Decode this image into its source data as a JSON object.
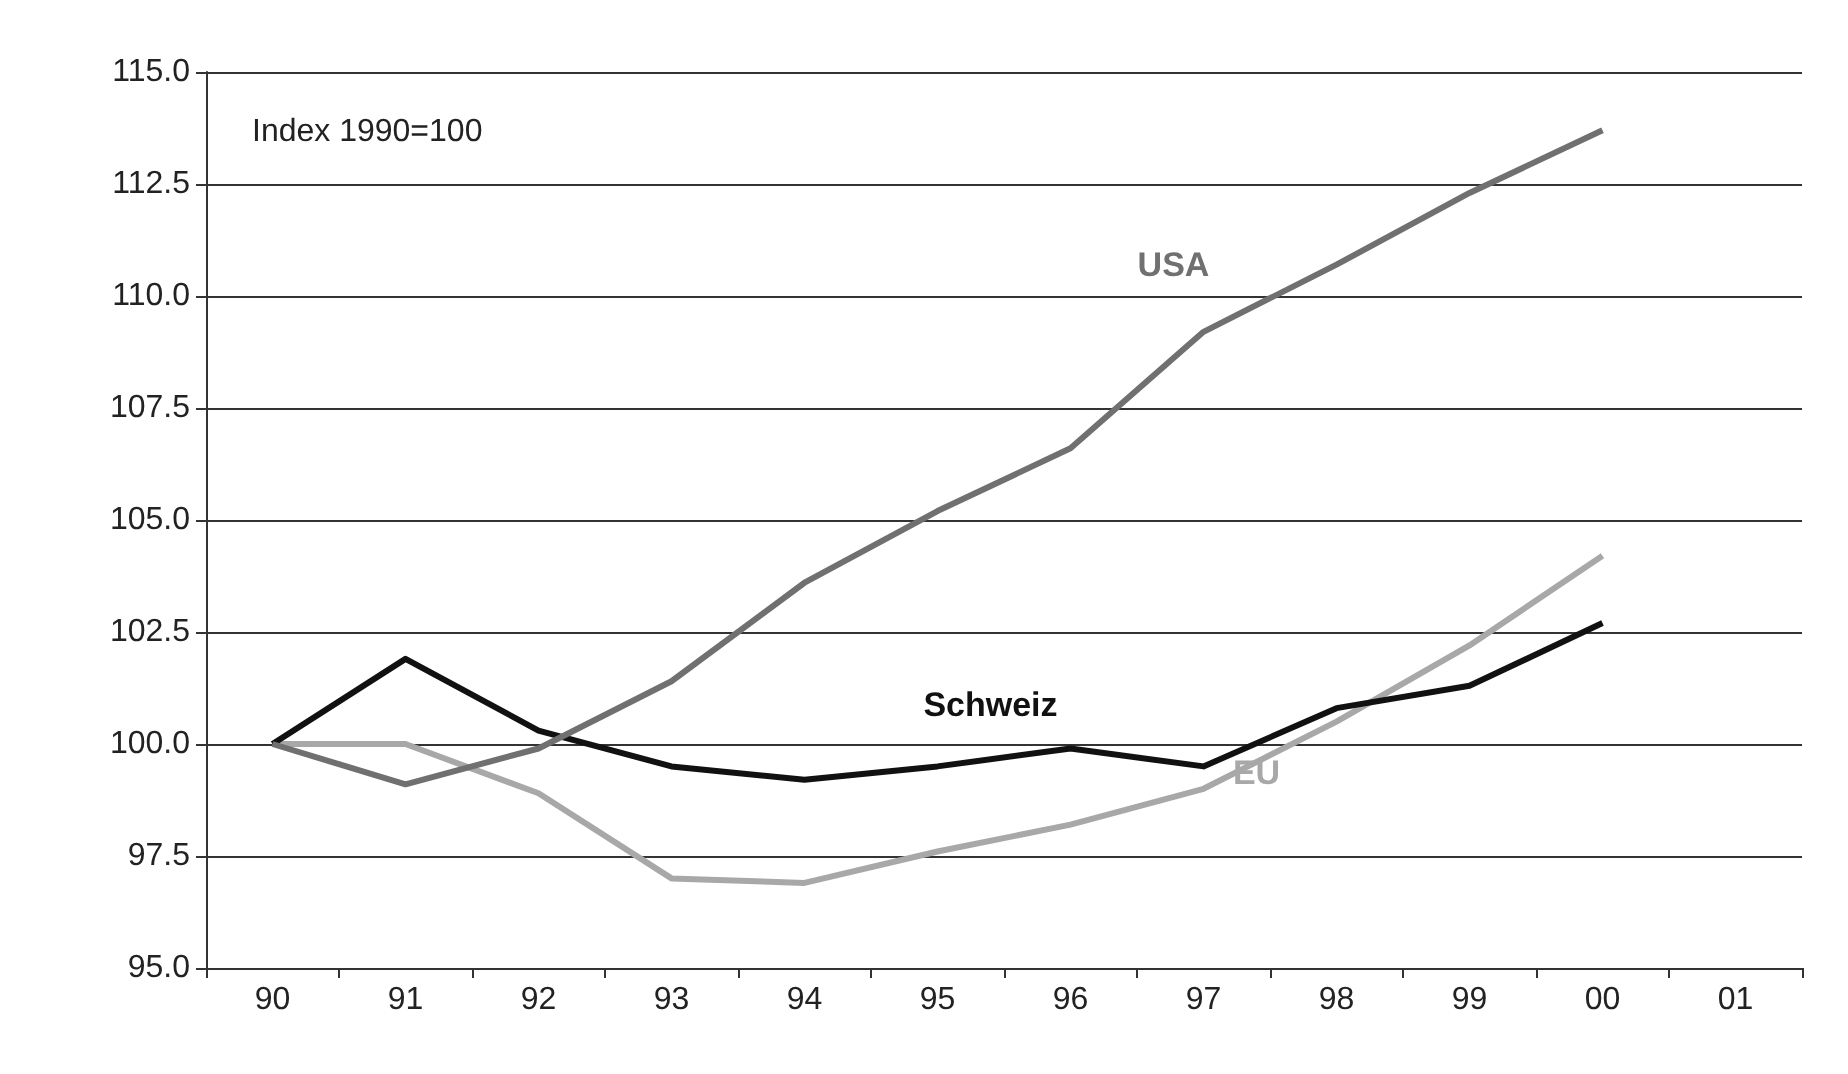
{
  "chart_data": {
    "type": "line",
    "categories": [
      "90",
      "91",
      "92",
      "93",
      "94",
      "95",
      "96",
      "97",
      "98",
      "99",
      "00",
      "01"
    ],
    "series": [
      {
        "name": "USA",
        "color": "#707070",
        "values": [
          100,
          99.1,
          99.9,
          101.4,
          103.6,
          105.2,
          106.6,
          109.2,
          110.7,
          112.3,
          113.7,
          null
        ]
      },
      {
        "name": "Schweiz",
        "color": "#111111",
        "values": [
          100,
          101.9,
          100.3,
          99.5,
          99.2,
          99.5,
          99.9,
          99.5,
          100.8,
          101.3,
          102.7,
          null
        ]
      },
      {
        "name": "EU",
        "color": "#a8a8a8",
        "values": [
          100,
          100,
          98.9,
          97.0,
          96.9,
          97.6,
          98.2,
          99.0,
          100.5,
          102.2,
          104.2,
          null
        ]
      }
    ],
    "ylim": [
      95,
      115
    ],
    "yticks": [
      {
        "value": 95,
        "label": "95.0"
      },
      {
        "value": 97.5,
        "label": "97.5"
      },
      {
        "value": 100,
        "label": "100.0"
      },
      {
        "value": 102.5,
        "label": "102.5"
      },
      {
        "value": 105,
        "label": "105.0"
      },
      {
        "value": 107.5,
        "label": "107.5"
      },
      {
        "value": 110,
        "label": "110.0"
      },
      {
        "value": 112.5,
        "label": "112.5"
      },
      {
        "value": 115,
        "label": "115.0"
      }
    ],
    "annotations": [
      "Index 1990=100"
    ],
    "grid": "y",
    "legend": false,
    "marker": "none",
    "line_style": "solid"
  }
}
